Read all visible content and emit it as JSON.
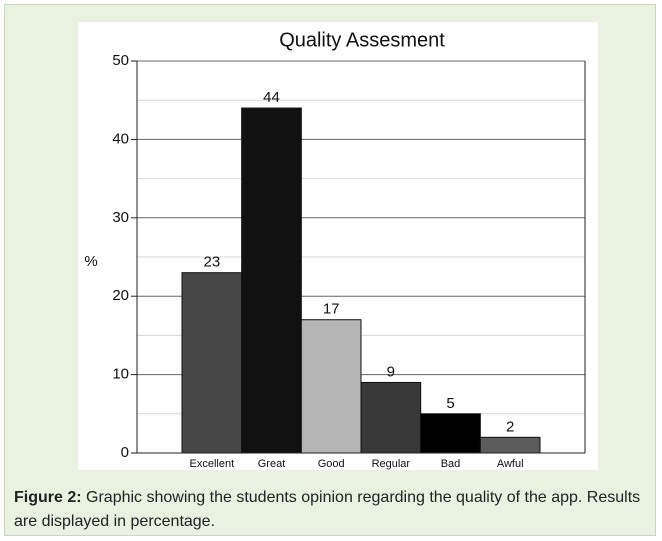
{
  "chart_data": {
    "type": "bar",
    "title": "Quality Assesment",
    "y_label": "%",
    "categories": [
      "Excellent",
      "Great",
      "Good",
      "Regular",
      "Bad",
      "Awful"
    ],
    "values": [
      23,
      44,
      17,
      9,
      5,
      2
    ],
    "colors": [
      "#474747",
      "#111111",
      "#b5b5b5",
      "#383838",
      "#000000",
      "#5c5c5c"
    ],
    "ylim": [
      0,
      50
    ],
    "yticks": [
      0,
      10,
      20,
      30,
      40,
      50
    ],
    "minor_grid": [
      5,
      15,
      25,
      35,
      45
    ],
    "grid": true
  },
  "caption": {
    "label": "Figure 2:",
    "text": "Graphic showing the students opinion regarding the quality of the app. Results are displayed in percentage."
  }
}
